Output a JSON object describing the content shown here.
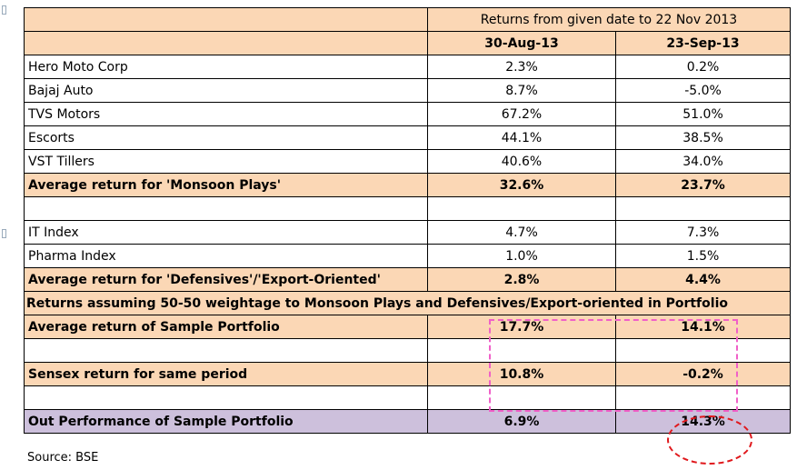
{
  "header": {
    "title": "Returns from given date to 22 Nov 2013",
    "col1": "30-Aug-13",
    "col2": "23-Sep-13"
  },
  "monsoon_rows": [
    {
      "name": "Hero Moto Corp",
      "v1": "2.3%",
      "v2": "0.2%"
    },
    {
      "name": "Bajaj Auto",
      "v1": "8.7%",
      "v2": "-5.0%"
    },
    {
      "name": "TVS Motors",
      "v1": "67.2%",
      "v2": "51.0%"
    },
    {
      "name": "Escorts",
      "v1": "44.1%",
      "v2": "38.5%"
    },
    {
      "name": "VST Tillers",
      "v1": "40.6%",
      "v2": "34.0%"
    }
  ],
  "monsoon_avg": {
    "label": "Average return for 'Monsoon Plays'",
    "v1": "32.6%",
    "v2": "23.7%"
  },
  "defensive_rows": [
    {
      "name": "IT Index",
      "v1": "4.7%",
      "v2": "7.3%"
    },
    {
      "name": "Pharma Index",
      "v1": "1.0%",
      "v2": "1.5%"
    }
  ],
  "defensive_avg": {
    "label": "Average return for 'Defensives'/'Export-Oriented'",
    "v1": "2.8%",
    "v2": "4.4%"
  },
  "assumption_text": "Returns assuming 50-50 weightage to Monsoon Plays and Defensives/Export-oriented in Portfolio",
  "portfolio": {
    "label": "Average return of Sample Portfolio",
    "v1": "17.7%",
    "v2": "14.1%"
  },
  "sensex": {
    "label": "Sensex return for same period",
    "v1": "10.8%",
    "v2": "-0.2%"
  },
  "outperformance": {
    "label": "Out Performance of Sample Portfolio",
    "v1": "6.9%",
    "v2": "14.3%"
  },
  "source": "Source: BSE",
  "colors": {
    "orange_fill": "#fbd7b5",
    "purple_fill": "#cdc0dc",
    "pink_dash": "#f060c8",
    "red_dash": "#e0181c"
  }
}
